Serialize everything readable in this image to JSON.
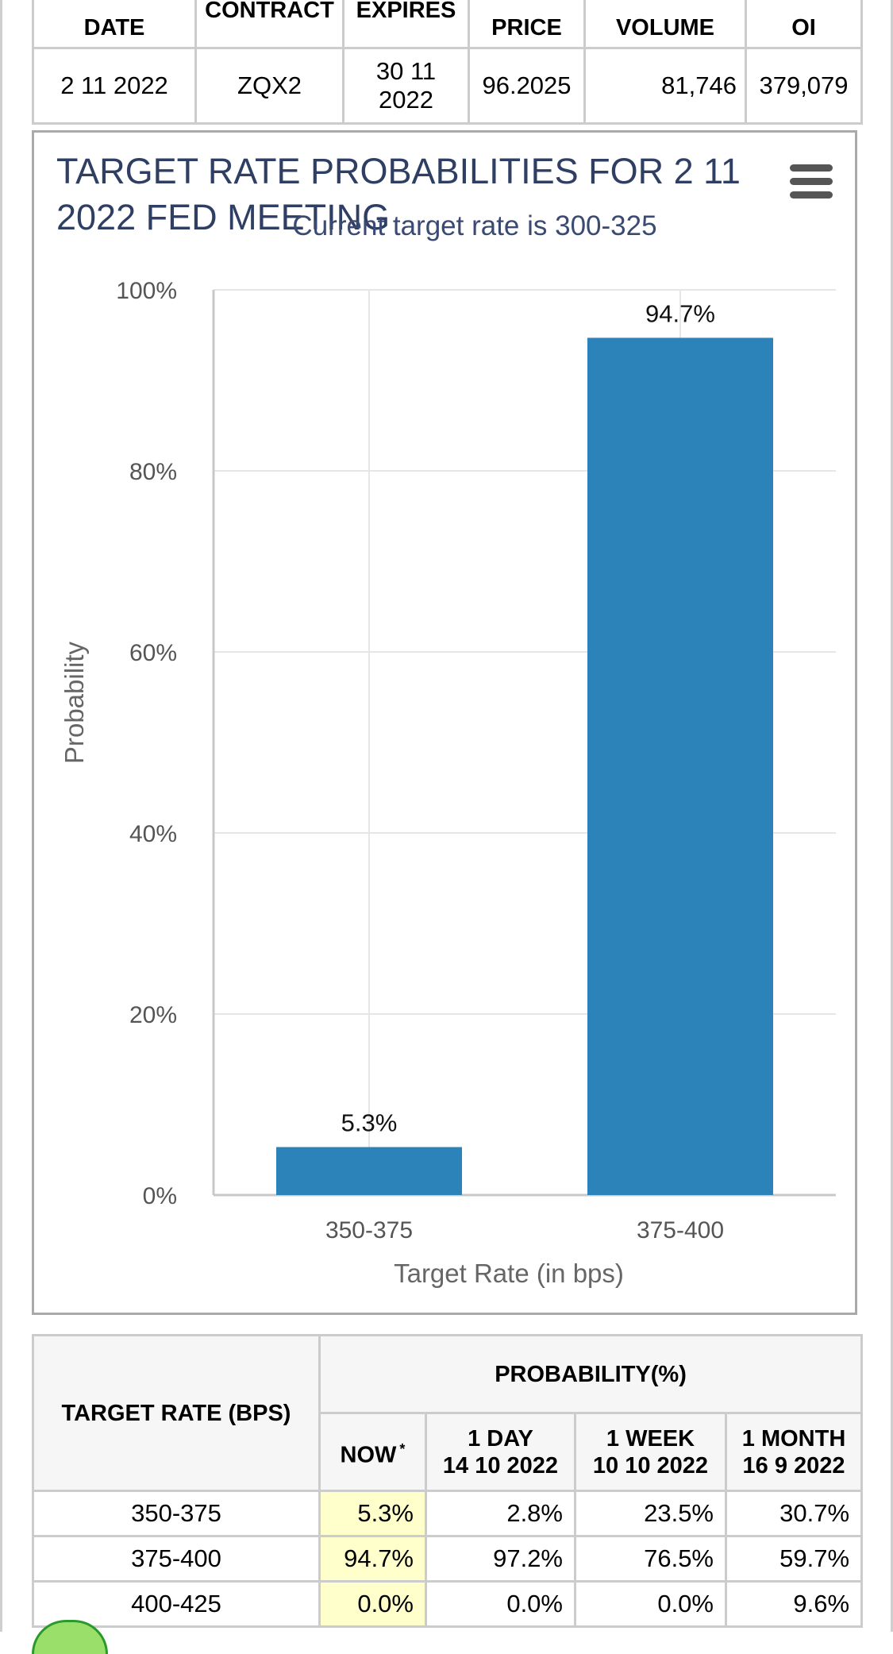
{
  "top_table": {
    "headers": [
      "DATE",
      "CONTRACT",
      "EXPIRES",
      "PRICE",
      "VOLUME",
      "OI"
    ],
    "row": [
      "2 11 2022",
      "ZQX2",
      "30 11 2022",
      "96.2025",
      "81,746",
      "379,079"
    ]
  },
  "chart_data": {
    "type": "bar",
    "title": "TARGET RATE PROBABILITIES FOR 2 11 2022 FED MEETING",
    "subtitle": "Current target rate is 300-325",
    "categories": [
      "350-375",
      "375-400"
    ],
    "values": [
      5.3,
      94.7
    ],
    "data_labels": [
      "5.3%",
      "94.7%"
    ],
    "xlabel": "Target Rate (in bps)",
    "ylabel": "Probability",
    "ylim": [
      0,
      100
    ],
    "yticks": [
      "0%",
      "20%",
      "40%",
      "60%",
      "80%",
      "100%"
    ],
    "grid": true,
    "bar_color": "#2b83ba"
  },
  "prob_table": {
    "rate_header": "TARGET RATE (BPS)",
    "prob_header": "PROBABILITY(%)",
    "col_now": "NOW",
    "col_now_mark": "*",
    "col_day": "1 DAY",
    "col_day_date": "14 10 2022",
    "col_week": "1 WEEK",
    "col_week_date": "10 10 2022",
    "col_month": "1 MONTH",
    "col_month_date": "16 9 2022",
    "rows": [
      {
        "rate": "350-375",
        "now": "5.3%",
        "day": "2.8%",
        "week": "23.5%",
        "month": "30.7%"
      },
      {
        "rate": "375-400",
        "now": "94.7%",
        "day": "97.2%",
        "week": "76.5%",
        "month": "59.7%"
      },
      {
        "rate": "400-425",
        "now": "0.0%",
        "day": "0.0%",
        "week": "0.0%",
        "month": "9.6%"
      }
    ]
  }
}
